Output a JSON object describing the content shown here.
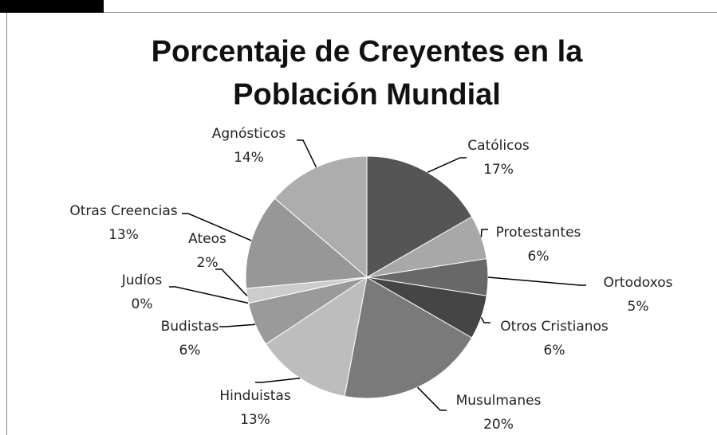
{
  "chart_data": {
    "type": "pie",
    "title": "Porcentaje de Creyentes en la Población Mundial",
    "categories": [
      "Católicos",
      "Protestantes",
      "Ortodoxos",
      "Otros Cristianos",
      "Musulmanes",
      "Hinduistas",
      "Budistas",
      "Judíos",
      "Ateos",
      "Otras Creencias",
      "Agnósticos"
    ],
    "values": [
      17,
      6,
      5,
      6,
      20,
      13,
      6,
      0,
      2,
      13,
      14
    ],
    "value_labels": [
      "17%",
      "6%",
      "5%",
      "6%",
      "20%",
      "13%",
      "6%",
      "0%",
      "2%",
      "13%",
      "14%"
    ],
    "colors": [
      "#555555",
      "#a8a8a8",
      "#686868",
      "#454545",
      "#7a7a7a",
      "#bdbdbd",
      "#9a9a9a",
      "#e0e0e0",
      "#cccccc",
      "#979797",
      "#adadad"
    ]
  }
}
